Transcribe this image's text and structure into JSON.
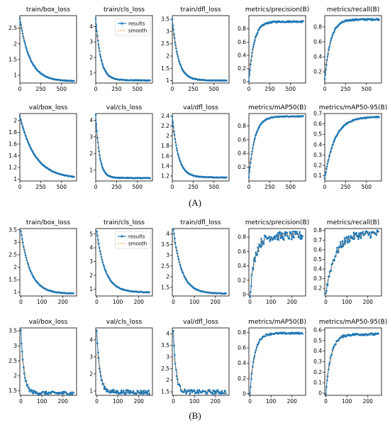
{
  "labels": {
    "A": "(A)",
    "B": "(B)"
  },
  "colors": {
    "line": "#1f77b4",
    "smooth": "#ff7f0e",
    "text": "#000000"
  },
  "legend": {
    "results": "results",
    "smooth": "smooth"
  },
  "chart_data": [
    {
      "group": "A",
      "type": "line",
      "title": "train/box_loss",
      "xlim": [
        0,
        680
      ],
      "ylim": [
        0.75,
        2.9
      ],
      "xticks": [
        0,
        250,
        500
      ],
      "yticks": [
        1.0,
        1.5,
        2.0,
        2.5
      ],
      "curve": {
        "kind": "decay",
        "start": 2.8,
        "end": 0.82,
        "rate": 120,
        "noise": 0.005,
        "n": 100
      },
      "legend": false
    },
    {
      "group": "A",
      "type": "line",
      "title": "train/cls_loss",
      "xlim": [
        0,
        680
      ],
      "ylim": [
        0.35,
        4.7
      ],
      "xticks": [
        0,
        250,
        500
      ],
      "yticks": [
        1,
        2,
        3,
        4
      ],
      "curve": {
        "kind": "decay",
        "start": 4.5,
        "end": 0.55,
        "rate": 60,
        "noise": 0.005,
        "n": 100
      },
      "legend": true
    },
    {
      "group": "A",
      "type": "line",
      "title": "train/dfl_loss",
      "xlim": [
        0,
        680
      ],
      "ylim": [
        0.9,
        3.65
      ],
      "xticks": [
        0,
        250,
        500
      ],
      "yticks": [
        1.0,
        1.5,
        2.0,
        2.5,
        3.0,
        3.5
      ],
      "curve": {
        "kind": "decay",
        "start": 3.5,
        "end": 1.02,
        "rate": 70,
        "noise": 0.005,
        "n": 100
      },
      "legend": false
    },
    {
      "group": "A",
      "type": "line",
      "title": "metrics/precision(B)",
      "xlim": [
        0,
        680
      ],
      "ylim": [
        -0.02,
        1.0
      ],
      "xticks": [
        0,
        250,
        500
      ],
      "yticks": [
        0.0,
        0.2,
        0.4,
        0.6,
        0.8
      ],
      "curve": {
        "kind": "rise",
        "start": 0.0,
        "end": 0.91,
        "rate": 60,
        "noise": 0.01,
        "n": 100
      },
      "legend": false
    },
    {
      "group": "A",
      "type": "line",
      "title": "metrics/recall(B)",
      "xlim": [
        0,
        680
      ],
      "ylim": [
        0.05,
        0.95
      ],
      "xticks": [
        0,
        250,
        500
      ],
      "yticks": [
        0.2,
        0.4,
        0.6,
        0.8
      ],
      "curve": {
        "kind": "rise",
        "start": 0.1,
        "end": 0.9,
        "rate": 70,
        "noise": 0.01,
        "n": 100
      },
      "legend": false
    },
    {
      "group": "A",
      "type": "line",
      "title": "val/box_loss",
      "xlim": [
        0,
        680
      ],
      "ylim": [
        0.97,
        2.12
      ],
      "xticks": [
        0,
        250,
        500
      ],
      "yticks": [
        1.0,
        1.2,
        1.4,
        1.6,
        1.8,
        2.0
      ],
      "curve": {
        "kind": "decay",
        "start": 2.08,
        "end": 1.02,
        "rate": 180,
        "noise": 0.004,
        "n": 100
      },
      "legend": false
    },
    {
      "group": "A",
      "type": "line",
      "title": "val/cls_loss",
      "xlim": [
        0,
        680
      ],
      "ylim": [
        0.35,
        4.4
      ],
      "xticks": [
        0,
        250,
        500
      ],
      "yticks": [
        1,
        2,
        3,
        4
      ],
      "curve": {
        "kind": "decay",
        "start": 4.3,
        "end": 0.55,
        "rate": 45,
        "noise": 0.005,
        "n": 100
      },
      "legend": false
    },
    {
      "group": "A",
      "type": "line",
      "title": "val/dfl_loss",
      "xlim": [
        0,
        680
      ],
      "ylim": [
        1.1,
        2.45
      ],
      "xticks": [
        0,
        250,
        500
      ],
      "yticks": [
        1.2,
        1.4,
        1.6,
        1.8,
        2.0,
        2.2,
        2.4
      ],
      "curve": {
        "kind": "decay",
        "start": 2.4,
        "end": 1.18,
        "rate": 70,
        "noise": 0.004,
        "n": 100
      },
      "legend": false
    },
    {
      "group": "A",
      "type": "line",
      "title": "metrics/mAP50(B)",
      "xlim": [
        0,
        680
      ],
      "ylim": [
        0.0,
        0.98
      ],
      "xticks": [
        0,
        250,
        500
      ],
      "yticks": [
        0.2,
        0.4,
        0.6,
        0.8
      ],
      "curve": {
        "kind": "rise",
        "start": 0.05,
        "end": 0.94,
        "rate": 70,
        "noise": 0.005,
        "n": 100
      },
      "legend": false
    },
    {
      "group": "A",
      "type": "line",
      "title": "metrics/mAP50-95(B)",
      "xlim": [
        0,
        680
      ],
      "ylim": [
        0.05,
        0.7
      ],
      "xticks": [
        0,
        250,
        500
      ],
      "yticks": [
        0.1,
        0.2,
        0.3,
        0.4,
        0.5,
        0.6,
        0.7
      ],
      "curve": {
        "kind": "rise",
        "start": 0.07,
        "end": 0.67,
        "rate": 120,
        "noise": 0.005,
        "n": 100
      },
      "legend": false
    },
    {
      "group": "B",
      "type": "line",
      "title": "train/box_loss",
      "xlim": [
        -5,
        265
      ],
      "ylim": [
        0.85,
        3.55
      ],
      "xticks": [
        0,
        100,
        200
      ],
      "yticks": [
        1.0,
        1.5,
        2.0,
        2.5,
        3.0,
        3.5
      ],
      "curve": {
        "kind": "decay",
        "start": 3.45,
        "end": 0.95,
        "rate": 45,
        "noise": 0.005,
        "n": 80
      },
      "legend": false
    },
    {
      "group": "B",
      "type": "line",
      "title": "train/cls_loss",
      "xlim": [
        -5,
        265
      ],
      "ylim": [
        0.5,
        5.4
      ],
      "xticks": [
        0,
        100,
        200
      ],
      "yticks": [
        1,
        2,
        3,
        4,
        5
      ],
      "curve": {
        "kind": "decay",
        "start": 5.2,
        "end": 0.78,
        "rate": 40,
        "noise": 0.005,
        "n": 80
      },
      "legend": true
    },
    {
      "group": "B",
      "type": "line",
      "title": "train/dfl_loss",
      "xlim": [
        -5,
        265
      ],
      "ylim": [
        1.1,
        4.25
      ],
      "xticks": [
        0,
        100,
        200
      ],
      "yticks": [
        1.5,
        2.0,
        2.5,
        3.0,
        3.5,
        4.0
      ],
      "curve": {
        "kind": "decay",
        "start": 4.2,
        "end": 1.22,
        "rate": 40,
        "noise": 0.005,
        "n": 80
      },
      "legend": false
    },
    {
      "group": "B",
      "type": "line",
      "title": "metrics/precision(B)",
      "xlim": [
        -5,
        265
      ],
      "ylim": [
        -0.02,
        0.92
      ],
      "xticks": [
        0,
        100,
        200
      ],
      "yticks": [
        0.0,
        0.2,
        0.4,
        0.6,
        0.8
      ],
      "curve": {
        "kind": "rise",
        "start": 0.0,
        "end": 0.82,
        "rate": 25,
        "noise": 0.06,
        "n": 80
      },
      "legend": false
    },
    {
      "group": "B",
      "type": "line",
      "title": "metrics/recall(B)",
      "xlim": [
        -5,
        265
      ],
      "ylim": [
        0.12,
        0.82
      ],
      "xticks": [
        0,
        100,
        200
      ],
      "yticks": [
        0.2,
        0.3,
        0.4,
        0.5,
        0.6,
        0.7,
        0.8
      ],
      "curve": {
        "kind": "rise",
        "start": 0.15,
        "end": 0.77,
        "rate": 45,
        "noise": 0.04,
        "n": 80
      },
      "legend": false
    },
    {
      "group": "B",
      "type": "line",
      "title": "val/box_loss",
      "xlim": [
        -5,
        265
      ],
      "ylim": [
        1.35,
        3.6
      ],
      "xticks": [
        0,
        100,
        200
      ],
      "yticks": [
        1.5,
        2.0,
        2.5,
        3.0,
        3.5
      ],
      "curve": {
        "kind": "decay",
        "start": 3.5,
        "end": 1.43,
        "rate": 14,
        "noise": 0.025,
        "n": 80
      },
      "legend": false
    },
    {
      "group": "B",
      "type": "line",
      "title": "val/cls_loss",
      "xlim": [
        -5,
        265
      ],
      "ylim": [
        0.75,
        4.7
      ],
      "xticks": [
        0,
        100,
        200
      ],
      "yticks": [
        1,
        2,
        3,
        4
      ],
      "curve": {
        "kind": "decay",
        "start": 4.55,
        "end": 0.95,
        "rate": 14,
        "noise": 0.03,
        "n": 80
      },
      "legend": false
    },
    {
      "group": "B",
      "type": "line",
      "title": "val/dfl_loss",
      "xlim": [
        -5,
        265
      ],
      "ylim": [
        1.35,
        4.25
      ],
      "xticks": [
        0,
        100,
        200
      ],
      "yticks": [
        1.5,
        2.0,
        2.5,
        3.0,
        3.5,
        4.0
      ],
      "curve": {
        "kind": "decay",
        "start": 4.1,
        "end": 1.5,
        "rate": 12,
        "noise": 0.03,
        "n": 80
      },
      "legend": false
    },
    {
      "group": "B",
      "type": "line",
      "title": "metrics/mAP50(B)",
      "xlim": [
        -5,
        265
      ],
      "ylim": [
        -0.02,
        0.86
      ],
      "xticks": [
        0,
        100,
        200
      ],
      "yticks": [
        0.0,
        0.2,
        0.4,
        0.6,
        0.8
      ],
      "curve": {
        "kind": "rise",
        "start": 0.0,
        "end": 0.79,
        "rate": 22,
        "noise": 0.01,
        "n": 80
      },
      "legend": false
    },
    {
      "group": "B",
      "type": "line",
      "title": "metrics/mAP50-95(B)",
      "xlim": [
        -5,
        265
      ],
      "ylim": [
        -0.02,
        0.62
      ],
      "xticks": [
        0,
        100,
        200
      ],
      "yticks": [
        0.0,
        0.1,
        0.2,
        0.3,
        0.4,
        0.5,
        0.6
      ],
      "curve": {
        "kind": "rise",
        "start": 0.0,
        "end": 0.56,
        "rate": 25,
        "noise": 0.01,
        "n": 80
      },
      "legend": false
    }
  ]
}
